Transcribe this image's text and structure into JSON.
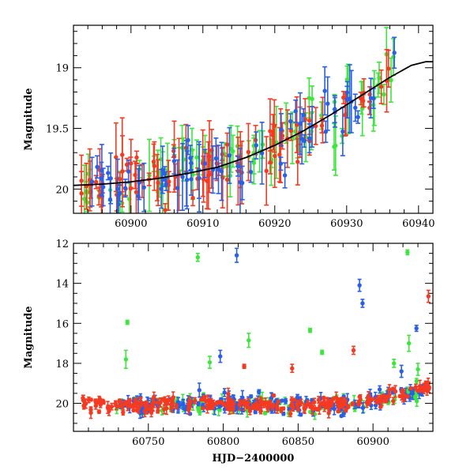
{
  "colors": {
    "green": "#3de63d",
    "red": "#f53a22",
    "blue": "#2a5fe6",
    "model": "#000000"
  },
  "chart_data": [
    {
      "type": "scatter",
      "panel": "top",
      "xlabel": "",
      "ylabel": "Magnitude",
      "xlim": [
        60892,
        60942
      ],
      "ylim": [
        20.2,
        18.65
      ],
      "y_inverted": true,
      "xticks": [
        60900,
        60910,
        60920,
        60930,
        60940
      ],
      "xtick_labels": [
        "60900",
        "60910",
        "60920",
        "60930",
        "60940"
      ],
      "yticks": [
        19,
        19.5,
        20
      ],
      "ytick_labels": [
        "19",
        "19.5",
        "20"
      ],
      "grid": false,
      "model_curve": {
        "x": [
          60892,
          60896,
          60900,
          60904,
          60908,
          60912,
          60916,
          60920,
          60924,
          60928,
          60932,
          60936,
          60939,
          60941,
          60942
        ],
        "y": [
          19.97,
          19.96,
          19.94,
          19.91,
          19.87,
          19.82,
          19.74,
          19.64,
          19.52,
          19.38,
          19.23,
          19.08,
          18.98,
          18.95,
          18.95
        ]
      },
      "series": [
        {
          "color": "green",
          "seed": 11,
          "n": 75,
          "xrange": [
            60892.5,
            60937
          ],
          "scatter": 0.13,
          "err": [
            0.06,
            0.3
          ]
        },
        {
          "color": "red",
          "seed": 23,
          "n": 95,
          "xrange": [
            60892.5,
            60936
          ],
          "scatter": 0.11,
          "err": [
            0.05,
            0.32
          ]
        },
        {
          "color": "blue",
          "seed": 37,
          "n": 70,
          "xrange": [
            60894,
            60937.5
          ],
          "scatter": 0.11,
          "err": [
            0.05,
            0.28
          ]
        }
      ]
    },
    {
      "type": "scatter",
      "panel": "bottom",
      "xlabel": "HJD−2400000",
      "ylabel": "Magnitude",
      "xlim": [
        60700,
        60940
      ],
      "ylim": [
        21.4,
        12
      ],
      "y_inverted": true,
      "xticks": [
        60750,
        60800,
        60850,
        60900
      ],
      "xtick_labels": [
        "60750",
        "60800",
        "60850",
        "60900"
      ],
      "yticks": [
        12,
        14,
        16,
        18,
        20
      ],
      "ytick_labels": [
        "12",
        "14",
        "16",
        "18",
        "20"
      ],
      "grid": false,
      "series": [
        {
          "color": "green",
          "seed": 5,
          "n": 120,
          "xrange": [
            60728,
            60932
          ],
          "scatter": 0.22,
          "err": [
            0.05,
            0.35
          ]
        },
        {
          "color": "blue",
          "seed": 9,
          "n": 180,
          "xrange": [
            60728,
            60936
          ],
          "scatter": 0.22,
          "err": [
            0.05,
            0.35
          ]
        },
        {
          "color": "red",
          "seed": 17,
          "n": 260,
          "xrange": [
            60705,
            60938
          ],
          "scatter": 0.18,
          "err": [
            0.05,
            0.3
          ]
        }
      ],
      "outliers": [
        {
          "color": "green",
          "x": 60783,
          "y": 12.7,
          "err": 0.2
        },
        {
          "color": "blue",
          "x": 60809,
          "y": 12.6,
          "err": 0.35
        },
        {
          "color": "green",
          "x": 60923,
          "y": 12.45,
          "err": 0.12
        },
        {
          "color": "green",
          "x": 60736,
          "y": 15.95,
          "err": 0.1
        },
        {
          "color": "green",
          "x": 60735,
          "y": 17.8,
          "err": 0.45
        },
        {
          "color": "green",
          "x": 60791,
          "y": 17.95,
          "err": 0.3
        },
        {
          "color": "blue",
          "x": 60798,
          "y": 17.65,
          "err": 0.3
        },
        {
          "color": "green",
          "x": 60817,
          "y": 16.85,
          "err": 0.35
        },
        {
          "color": "red",
          "x": 60814,
          "y": 18.15,
          "err": 0.1
        },
        {
          "color": "red",
          "x": 60846,
          "y": 18.25,
          "err": 0.2
        },
        {
          "color": "green",
          "x": 60858,
          "y": 16.35,
          "err": 0.1
        },
        {
          "color": "green",
          "x": 60866,
          "y": 17.45,
          "err": 0.1
        },
        {
          "color": "blue",
          "x": 60891,
          "y": 14.1,
          "err": 0.3
        },
        {
          "color": "blue",
          "x": 60893,
          "y": 15.0,
          "err": 0.2
        },
        {
          "color": "red",
          "x": 60887,
          "y": 17.35,
          "err": 0.2
        },
        {
          "color": "green",
          "x": 60924,
          "y": 17.0,
          "err": 0.4
        },
        {
          "color": "green",
          "x": 60914,
          "y": 18.0,
          "err": 0.2
        },
        {
          "color": "blue",
          "x": 60929,
          "y": 16.25,
          "err": 0.15
        },
        {
          "color": "red",
          "x": 60937,
          "y": 14.65,
          "err": 0.3
        },
        {
          "color": "blue",
          "x": 60919,
          "y": 18.4,
          "err": 0.3
        },
        {
          "color": "green",
          "x": 60930,
          "y": 18.3,
          "err": 0.3
        }
      ]
    }
  ]
}
